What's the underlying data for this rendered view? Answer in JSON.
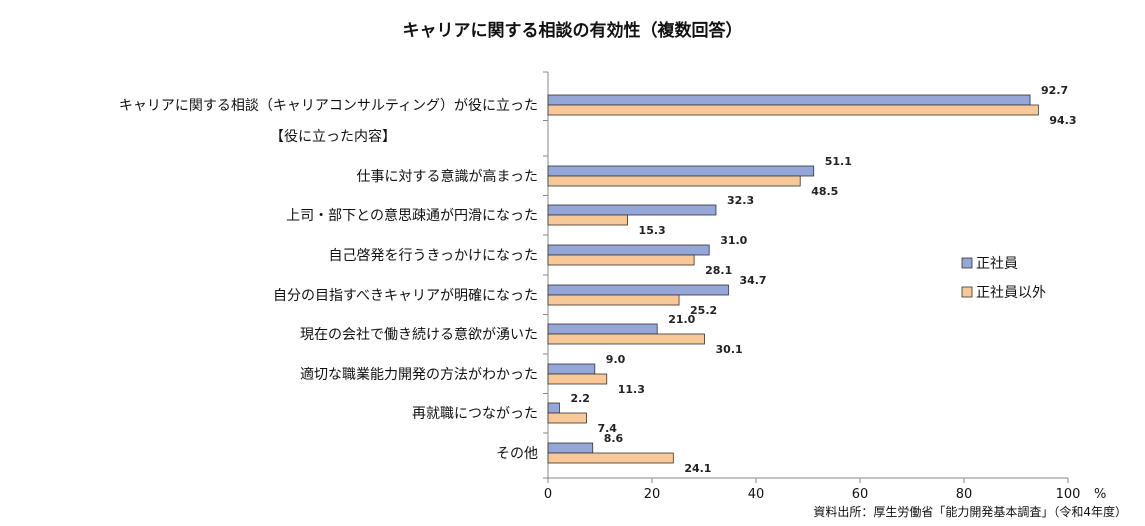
{
  "source_note": "資料出所：厚生労働省「能力開発基本調査」（令和4年度）",
  "chart_data": {
    "type": "bar",
    "orientation": "horizontal",
    "title": "キャリアに関する相談の有効性（複数回答）",
    "unit_label": "%",
    "xlim": [
      0,
      100
    ],
    "x_ticks": [
      0,
      20,
      40,
      60,
      80,
      100
    ],
    "categories": [
      "キャリアに関する相談（キャリアコンサルティング）が役に立った",
      "【役に立った内容】",
      "仕事に対する意識が高まった",
      "上司・部下との意思疎通が円滑になった",
      "自己啓発を行うきっかけになった",
      "自分の目指すべきキャリアが明確になった",
      "現在の会社で働き続ける意欲が湧いた",
      "適切な職業能力開発の方法がわかった",
      "再就職につながった",
      "その他"
    ],
    "series": [
      {
        "name": "正社員",
        "color": "#95A6D8",
        "values": [
          92.7,
          null,
          51.1,
          32.3,
          31.0,
          34.7,
          21.0,
          9.0,
          2.2,
          8.6
        ],
        "labels": [
          "92.7",
          "",
          "51.1",
          "32.3",
          "31.0",
          "34.7",
          "21.0",
          "9.0",
          "2.2",
          "8.6"
        ]
      },
      {
        "name": "正社員以外",
        "color": "#F9C898",
        "values": [
          94.3,
          null,
          48.5,
          15.3,
          28.1,
          25.2,
          30.1,
          11.3,
          7.4,
          24.1
        ],
        "labels": [
          "94.3",
          "",
          "48.5",
          "15.3",
          "28.1",
          "25.2",
          "30.1",
          "11.3",
          "7.4",
          "24.1"
        ]
      }
    ],
    "legend_position": "right",
    "grid": false
  }
}
